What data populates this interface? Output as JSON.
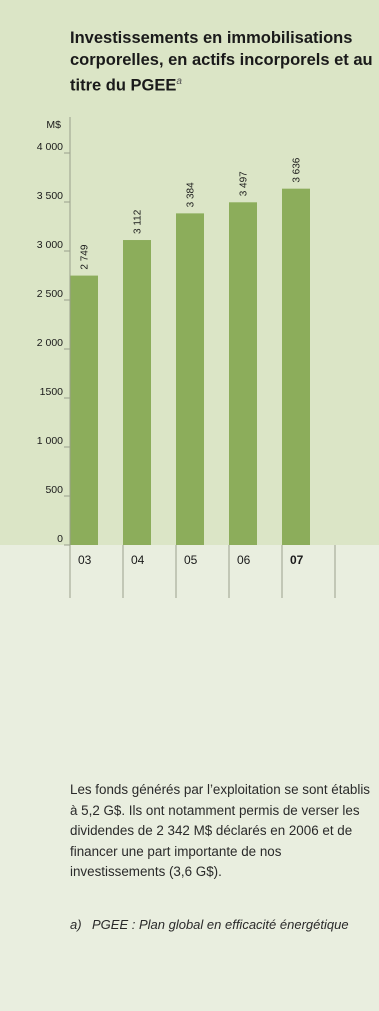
{
  "title": {
    "main": "Investissements en immobilisations corporelles, en actifs incorporels et au titre du PGEE",
    "note_marker": "a"
  },
  "chart_data": {
    "type": "bar",
    "title": "Investissements en immobilisations corporelles, en actifs incorporels et au titre du PGEE",
    "ylabel": "M$",
    "xlabel": "",
    "ylim": [
      0,
      4000
    ],
    "yticks": [
      0,
      500,
      1000,
      1500,
      2000,
      2500,
      3000,
      3500,
      4000
    ],
    "ytick_labels": [
      "0",
      "500",
      "1 000",
      "1500",
      "2 000",
      "2 500",
      "3 000",
      "3 500",
      "4 000"
    ],
    "categories": [
      "03",
      "04",
      "05",
      "06",
      "07"
    ],
    "values": [
      2749,
      3112,
      3384,
      3497,
      3636
    ],
    "value_labels": [
      "2 749",
      "3 112",
      "3 384",
      "3 497",
      "3 636"
    ],
    "highlight_category": "07",
    "grid": false,
    "colors": {
      "bar": "#8cad5b",
      "panel": "#dbe5c6",
      "background": "#e9eedf",
      "axis": "#9aa08c",
      "text": "#1a1a1a"
    }
  },
  "body_text": "Les fonds générés par l’exploitation se sont établis à 5,2 G$. Ils ont notamment permis de verser les dividendes de 2 342 M$ déclarés en 2006 et de financer une part importante de nos investissements (3,6 G$).",
  "footnote": {
    "marker": "a)",
    "text": "PGEE : Plan global en efficacité énergétique"
  }
}
